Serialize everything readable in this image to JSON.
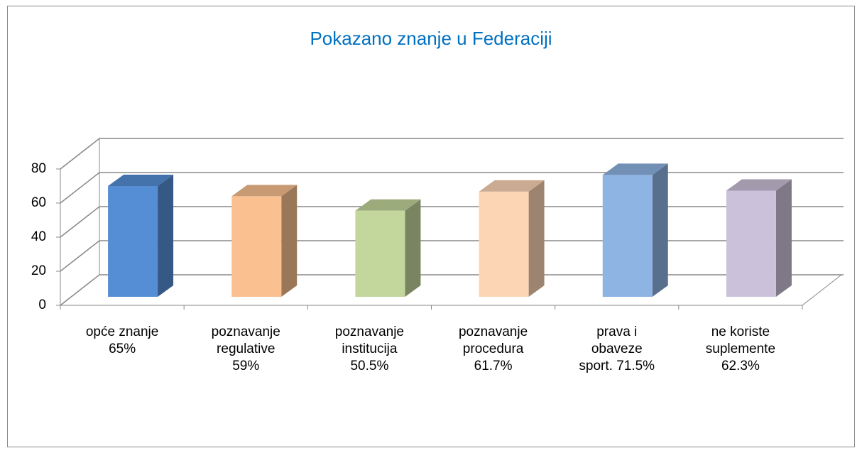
{
  "chart_data": {
    "type": "bar3d",
    "title": "Pokazano znanje u Federaciji",
    "categories": [
      "opće znanje\n65%",
      "poznavanje\nregulative\n59%",
      "poznavanje\ninstitucija\n50.5%",
      "poznavanje\nprocedura\n61.7%",
      "prava i\nobaveze\nsport. 71.5%",
      "ne koriste\nsuplemente\n62.3%"
    ],
    "values": [
      65,
      59,
      50.5,
      61.7,
      71.5,
      62.3
    ],
    "colors": [
      "#558ed5",
      "#fac090",
      "#c3d69b",
      "#fcd5b5",
      "#8eb4e3",
      "#ccc1da"
    ],
    "ylim": [
      0,
      80
    ],
    "yticks": [
      0,
      20,
      40,
      60,
      80
    ],
    "grid": true
  }
}
